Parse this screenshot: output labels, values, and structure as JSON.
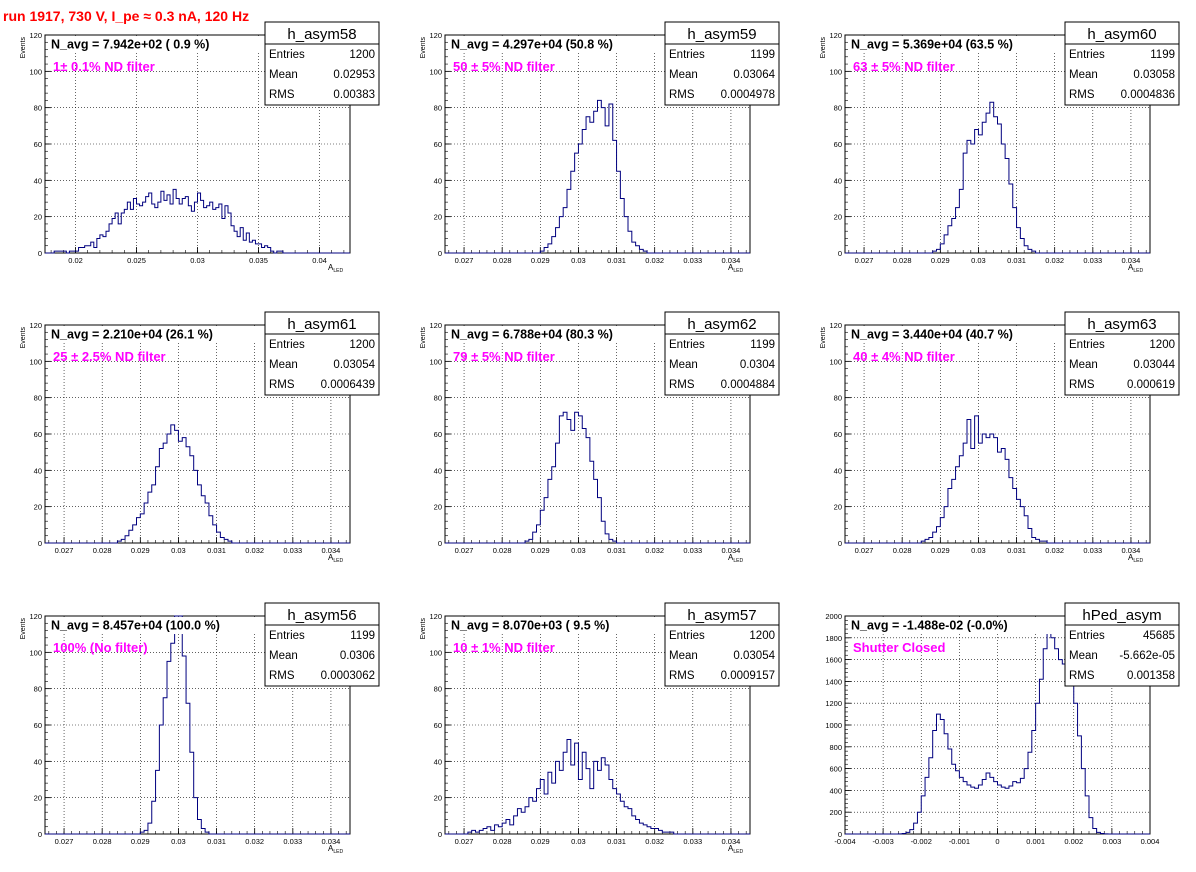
{
  "header": {
    "run_title": "run 1917,   730 V, I_pe ≈ 0.3 nA, 120 Hz"
  },
  "colors": {
    "histogram": "#00007f",
    "annotation": "#ff00ff",
    "title": "#ff0000",
    "grid": "#000000"
  },
  "chart_data": [
    {
      "type": "bar",
      "hist_name": "h_asym58",
      "navg": "N_avg = 7.942e+02 ( 0.9 %)",
      "filter": "1± 0.1% ND filter",
      "stats": [
        [
          "Entries",
          "1200"
        ],
        [
          "Mean",
          "0.02953"
        ],
        [
          "RMS",
          "0.00383"
        ]
      ],
      "xlim": [
        0.0175,
        0.0425
      ],
      "ylim": [
        0,
        120
      ],
      "xticks": [
        0.02,
        0.025,
        0.03,
        0.035,
        0.04
      ],
      "xtick_labels": [
        "0.02",
        "0.025",
        "0.03",
        "0.035",
        "0.04"
      ],
      "yticks": [
        0,
        20,
        40,
        60,
        80,
        100,
        120
      ],
      "ytick_labels": [
        "0",
        "20",
        "40",
        "60",
        "80",
        "100",
        "120"
      ],
      "ylabel": "Events",
      "xlabel": "A",
      "xlabel_sub": "LED",
      "bin_lo": 0.0175,
      "bin_width": 0.00025,
      "counts": [
        0,
        0,
        0,
        1,
        1,
        1,
        1,
        0,
        1,
        1,
        1,
        3,
        3,
        4,
        4,
        6,
        3,
        8,
        10,
        9,
        12,
        16,
        19,
        22,
        16,
        22,
        24,
        28,
        24,
        30,
        27,
        26,
        28,
        31,
        33,
        27,
        25,
        28,
        34,
        29,
        32,
        27,
        35,
        30,
        27,
        30,
        31,
        26,
        23,
        28,
        33,
        29,
        25,
        26,
        28,
        24,
        25,
        27,
        19,
        26,
        22,
        15,
        12,
        9,
        14,
        7,
        11,
        6,
        7,
        5,
        5,
        3,
        4,
        3,
        1,
        0,
        1,
        1,
        0,
        0,
        0,
        0,
        0,
        0,
        0,
        0,
        0,
        0,
        0,
        0,
        0,
        0,
        0,
        0,
        0,
        0,
        0,
        0,
        0,
        0
      ]
    },
    {
      "type": "bar",
      "hist_name": "h_asym59",
      "navg": "N_avg = 4.297e+04 (50.8 %)",
      "filter": "50 ± 5% ND filter",
      "stats": [
        [
          "Entries",
          "1199"
        ],
        [
          "Mean",
          "0.03064"
        ],
        [
          "RMS",
          "0.0004978"
        ]
      ],
      "xlim": [
        0.0265,
        0.0345
      ],
      "ylim": [
        0,
        120
      ],
      "xticks": [
        0.027,
        0.028,
        0.029,
        0.03,
        0.031,
        0.032,
        0.033,
        0.034
      ],
      "xtick_labels": [
        "0.027",
        "0.028",
        "0.029",
        "0.03",
        "0.031",
        "0.032",
        "0.033",
        "0.034"
      ],
      "yticks": [
        0,
        20,
        40,
        60,
        80,
        100,
        120
      ],
      "ytick_labels": [
        "0",
        "20",
        "40",
        "60",
        "80",
        "100",
        "120"
      ],
      "ylabel": "Events",
      "xlabel": "A",
      "xlabel_sub": "LED",
      "bin_lo": 0.0265,
      "bin_width": 0.0001,
      "counts": [
        0,
        0,
        0,
        0,
        0,
        0,
        0,
        0,
        0,
        0,
        0,
        0,
        0,
        0,
        0,
        0,
        0,
        0,
        0,
        0,
        0,
        0,
        0,
        0,
        0,
        1,
        3,
        5,
        9,
        14,
        20,
        25,
        35,
        45,
        55,
        60,
        68,
        75,
        72,
        78,
        84,
        80,
        70,
        82,
        62,
        45,
        30,
        20,
        12,
        6,
        4,
        2,
        1,
        0,
        0,
        0,
        0,
        0,
        0,
        0,
        0,
        0,
        0,
        0,
        0,
        0,
        0,
        0,
        0,
        0,
        0,
        0,
        0,
        0,
        0,
        0,
        0,
        0,
        0,
        0
      ]
    },
    {
      "type": "bar",
      "hist_name": "h_asym60",
      "navg": "N_avg = 5.369e+04 (63.5 %)",
      "filter": "63 ± 5% ND filter",
      "stats": [
        [
          "Entries",
          "1199"
        ],
        [
          "Mean",
          "0.03058"
        ],
        [
          "RMS",
          "0.0004836"
        ]
      ],
      "xlim": [
        0.0265,
        0.0345
      ],
      "ylim": [
        0,
        120
      ],
      "xticks": [
        0.027,
        0.028,
        0.029,
        0.03,
        0.031,
        0.032,
        0.033,
        0.034
      ],
      "xtick_labels": [
        "0.027",
        "0.028",
        "0.029",
        "0.03",
        "0.031",
        "0.032",
        "0.033",
        "0.034"
      ],
      "yticks": [
        0,
        20,
        40,
        60,
        80,
        100,
        120
      ],
      "ytick_labels": [
        "0",
        "20",
        "40",
        "60",
        "80",
        "100",
        "120"
      ],
      "ylabel": "Events",
      "xlabel": "A",
      "xlabel_sub": "LED",
      "bin_lo": 0.0265,
      "bin_width": 0.0001,
      "counts": [
        0,
        0,
        0,
        0,
        0,
        0,
        0,
        0,
        0,
        0,
        0,
        0,
        0,
        0,
        0,
        0,
        0,
        0,
        0,
        0,
        0,
        0,
        0,
        1,
        2,
        5,
        10,
        15,
        19,
        25,
        35,
        55,
        62,
        60,
        68,
        65,
        72,
        77,
        83,
        75,
        71,
        60,
        52,
        38,
        25,
        14,
        8,
        4,
        2,
        1,
        0,
        0,
        0,
        0,
        0,
        0,
        0,
        0,
        0,
        0,
        0,
        0,
        0,
        0,
        0,
        0,
        0,
        0,
        0,
        0,
        0,
        0,
        0,
        0,
        0,
        0,
        0,
        0,
        0,
        0
      ]
    },
    {
      "type": "bar",
      "hist_name": "h_asym61",
      "navg": "N_avg = 2.210e+04 (26.1 %)",
      "filter": "25 ± 2.5% ND filter",
      "stats": [
        [
          "Entries",
          "1200"
        ],
        [
          "Mean",
          "0.03054"
        ],
        [
          "RMS",
          "0.0006439"
        ]
      ],
      "xlim": [
        0.0265,
        0.0345
      ],
      "ylim": [
        0,
        120
      ],
      "xticks": [
        0.027,
        0.028,
        0.029,
        0.03,
        0.031,
        0.032,
        0.033,
        0.034
      ],
      "xtick_labels": [
        "0.027",
        "0.028",
        "0.029",
        "0.03",
        "0.031",
        "0.032",
        "0.033",
        "0.034"
      ],
      "yticks": [
        0,
        20,
        40,
        60,
        80,
        100,
        120
      ],
      "ytick_labels": [
        "0",
        "20",
        "40",
        "60",
        "80",
        "100",
        "120"
      ],
      "ylabel": "Events",
      "xlabel": "A",
      "xlabel_sub": "LED",
      "bin_lo": 0.0265,
      "bin_width": 0.0001,
      "counts": [
        0,
        0,
        0,
        0,
        0,
        0,
        0,
        0,
        0,
        0,
        0,
        0,
        0,
        0,
        0,
        0,
        0,
        0,
        0,
        1,
        2,
        4,
        7,
        10,
        14,
        16,
        22,
        28,
        32,
        42,
        52,
        55,
        60,
        65,
        62,
        56,
        58,
        53,
        48,
        40,
        32,
        26,
        22,
        15,
        10,
        6,
        3,
        2,
        1,
        0,
        0,
        0,
        0,
        0,
        0,
        0,
        0,
        0,
        0,
        0,
        0,
        0,
        0,
        0,
        0,
        0,
        0,
        0,
        0,
        0,
        0,
        0,
        0,
        0,
        0,
        0,
        0,
        0,
        0,
        0
      ]
    },
    {
      "type": "bar",
      "hist_name": "h_asym62",
      "navg": "N_avg = 6.788e+04 (80.3 %)",
      "filter": "79 ± 5% ND filter",
      "stats": [
        [
          "Entries",
          "1199"
        ],
        [
          "Mean",
          "0.0304"
        ],
        [
          "RMS",
          "0.0004884"
        ]
      ],
      "xlim": [
        0.0265,
        0.0345
      ],
      "ylim": [
        0,
        120
      ],
      "xticks": [
        0.027,
        0.028,
        0.029,
        0.03,
        0.031,
        0.032,
        0.033,
        0.034
      ],
      "xtick_labels": [
        "0.027",
        "0.028",
        "0.029",
        "0.03",
        "0.031",
        "0.032",
        "0.033",
        "0.034"
      ],
      "yticks": [
        0,
        20,
        40,
        60,
        80,
        100,
        120
      ],
      "ytick_labels": [
        "0",
        "20",
        "40",
        "60",
        "80",
        "100",
        "120"
      ],
      "ylabel": "Events",
      "xlabel": "A",
      "xlabel_sub": "LED",
      "bin_lo": 0.0265,
      "bin_width": 0.0001,
      "counts": [
        0,
        0,
        0,
        0,
        0,
        0,
        0,
        0,
        0,
        0,
        0,
        0,
        0,
        0,
        0,
        0,
        0,
        0,
        0,
        0,
        0,
        1,
        2,
        6,
        10,
        18,
        25,
        35,
        42,
        55,
        70,
        72,
        68,
        62,
        72,
        70,
        63,
        58,
        45,
        35,
        25,
        12,
        5,
        2,
        1,
        0,
        0,
        0,
        0,
        0,
        0,
        0,
        0,
        0,
        0,
        0,
        0,
        0,
        0,
        0,
        0,
        0,
        0,
        0,
        0,
        0,
        0,
        0,
        0,
        0,
        0,
        0,
        0,
        0,
        0,
        0,
        0,
        0,
        0,
        0
      ]
    },
    {
      "type": "bar",
      "hist_name": "h_asym63",
      "navg": "N_avg = 3.440e+04 (40.7 %)",
      "filter": "40 ± 4% ND filter",
      "stats": [
        [
          "Entries",
          "1200"
        ],
        [
          "Mean",
          "0.03044"
        ],
        [
          "RMS",
          "0.000619"
        ]
      ],
      "xlim": [
        0.0265,
        0.0345
      ],
      "ylim": [
        0,
        120
      ],
      "xticks": [
        0.027,
        0.028,
        0.029,
        0.03,
        0.031,
        0.032,
        0.033,
        0.034
      ],
      "xtick_labels": [
        "0.027",
        "0.028",
        "0.029",
        "0.03",
        "0.031",
        "0.032",
        "0.033",
        "0.034"
      ],
      "yticks": [
        0,
        20,
        40,
        60,
        80,
        100,
        120
      ],
      "ytick_labels": [
        "0",
        "20",
        "40",
        "60",
        "80",
        "100",
        "120"
      ],
      "ylabel": "Events",
      "xlabel": "A",
      "xlabel_sub": "LED",
      "bin_lo": 0.0265,
      "bin_width": 0.0001,
      "counts": [
        0,
        0,
        0,
        0,
        0,
        0,
        0,
        0,
        0,
        0,
        0,
        0,
        0,
        0,
        0,
        0,
        0,
        0,
        0,
        0,
        1,
        2,
        3,
        6,
        9,
        14,
        20,
        30,
        35,
        42,
        48,
        55,
        68,
        52,
        70,
        55,
        60,
        58,
        60,
        58,
        50,
        52,
        46,
        36,
        30,
        24,
        20,
        15,
        8,
        3,
        2,
        1,
        1,
        0,
        0,
        0,
        0,
        0,
        0,
        0,
        0,
        0,
        0,
        0,
        0,
        0,
        0,
        0,
        0,
        0,
        0,
        0,
        0,
        0,
        0,
        0,
        0,
        0,
        0,
        0
      ]
    },
    {
      "type": "bar",
      "hist_name": "h_asym56",
      "navg": "N_avg = 8.457e+04 (100.0 %)",
      "filter": "100% (No filter)",
      "stats": [
        [
          "Entries",
          "1199"
        ],
        [
          "Mean",
          "0.0306"
        ],
        [
          "RMS",
          "0.0003062"
        ]
      ],
      "xlim": [
        0.0265,
        0.0345
      ],
      "ylim": [
        0,
        120
      ],
      "xticks": [
        0.027,
        0.028,
        0.029,
        0.03,
        0.031,
        0.032,
        0.033,
        0.034
      ],
      "xtick_labels": [
        "0.027",
        "0.028",
        "0.029",
        "0.03",
        "0.031",
        "0.032",
        "0.033",
        "0.034"
      ],
      "yticks": [
        0,
        20,
        40,
        60,
        80,
        100,
        120
      ],
      "ytick_labels": [
        "0",
        "20",
        "40",
        "60",
        "80",
        "100",
        "120"
      ],
      "ylabel": "Events",
      "xlabel": "A",
      "xlabel_sub": "LED",
      "bin_lo": 0.0265,
      "bin_width": 0.0001,
      "counts": [
        0,
        0,
        0,
        0,
        0,
        0,
        0,
        0,
        0,
        0,
        0,
        0,
        0,
        0,
        0,
        0,
        0,
        0,
        0,
        0,
        0,
        0,
        0,
        0,
        0,
        1,
        2,
        6,
        18,
        35,
        60,
        75,
        95,
        105,
        125,
        125,
        98,
        72,
        45,
        20,
        8,
        3,
        1,
        0,
        0,
        0,
        0,
        0,
        0,
        0,
        0,
        0,
        0,
        0,
        0,
        0,
        0,
        0,
        0,
        0,
        0,
        0,
        0,
        0,
        0,
        0,
        0,
        0,
        0,
        0,
        0,
        0,
        0,
        0,
        0,
        0,
        0,
        0,
        0,
        0
      ]
    },
    {
      "type": "bar",
      "hist_name": "h_asym57",
      "navg": "N_avg = 8.070e+03 ( 9.5 %)",
      "filter": "10 ± 1% ND filter",
      "stats": [
        [
          "Entries",
          "1200"
        ],
        [
          "Mean",
          "0.03054"
        ],
        [
          "RMS",
          "0.0009157"
        ]
      ],
      "xlim": [
        0.0265,
        0.0345
      ],
      "ylim": [
        0,
        120
      ],
      "xticks": [
        0.027,
        0.028,
        0.029,
        0.03,
        0.031,
        0.032,
        0.033,
        0.034
      ],
      "xtick_labels": [
        "0.027",
        "0.028",
        "0.029",
        "0.03",
        "0.031",
        "0.032",
        "0.033",
        "0.034"
      ],
      "yticks": [
        0,
        20,
        40,
        60,
        80,
        100,
        120
      ],
      "ytick_labels": [
        "0",
        "20",
        "40",
        "60",
        "80",
        "100",
        "120"
      ],
      "ylabel": "Events",
      "xlabel": "A",
      "xlabel_sub": "LED",
      "bin_lo": 0.0265,
      "bin_width": 0.0001,
      "counts": [
        0,
        0,
        0,
        0,
        0,
        0,
        1,
        2,
        1,
        2,
        3,
        4,
        2,
        5,
        4,
        6,
        8,
        5,
        10,
        14,
        12,
        15,
        20,
        18,
        25,
        30,
        22,
        34,
        28,
        40,
        35,
        45,
        52,
        38,
        50,
        30,
        45,
        36,
        25,
        40,
        35,
        42,
        38,
        30,
        25,
        22,
        18,
        15,
        14,
        10,
        8,
        6,
        5,
        4,
        3,
        3,
        2,
        1,
        1,
        1,
        0,
        0,
        0,
        0,
        0,
        0,
        0,
        0,
        0,
        0,
        0,
        0,
        0,
        0,
        0,
        0,
        0,
        0,
        0,
        0
      ]
    },
    {
      "type": "bar",
      "hist_name": "hPed_asym",
      "navg": "N_avg = -1.488e-02 (-0.0%)",
      "filter": "Shutter Closed",
      "stats": [
        [
          "Entries",
          "45685"
        ],
        [
          "Mean",
          "-5.662e-05"
        ],
        [
          "RMS",
          "0.001358"
        ]
      ],
      "xlim": [
        -0.004,
        0.004
      ],
      "ylim": [
        0,
        2000
      ],
      "xticks": [
        -0.004,
        -0.003,
        -0.002,
        -0.001,
        0,
        0.001,
        0.002,
        0.003,
        0.004
      ],
      "xtick_labels": [
        "-0.004",
        "-0.003",
        "-0.002",
        "-0.001",
        "0",
        "0.001",
        "0.002",
        "0.003",
        "0.004"
      ],
      "yticks": [
        0,
        200,
        400,
        600,
        800,
        1000,
        1200,
        1400,
        1600,
        1800,
        2000
      ],
      "ytick_labels": [
        "0",
        "200",
        "400",
        "600",
        "800",
        "1000",
        "1200",
        "1400",
        "1600",
        "1800",
        "2000"
      ],
      "ylabel": "",
      "xlabel": "",
      "xlabel_sub": "",
      "bin_lo": -0.004,
      "bin_width": 0.0001,
      "counts": [
        0,
        0,
        0,
        0,
        0,
        0,
        0,
        0,
        0,
        0,
        0,
        0,
        0,
        0,
        1,
        5,
        15,
        40,
        100,
        200,
        350,
        520,
        700,
        950,
        1100,
        1050,
        920,
        780,
        640,
        580,
        520,
        480,
        450,
        430,
        420,
        450,
        500,
        560,
        520,
        480,
        450,
        430,
        420,
        440,
        480,
        470,
        510,
        600,
        750,
        950,
        1200,
        1420,
        1700,
        1900,
        1800,
        1700,
        1600,
        1560,
        1500,
        1400,
        1200,
        900,
        600,
        350,
        150,
        50,
        15,
        5,
        1,
        0,
        0,
        0,
        0,
        0,
        0,
        0,
        0,
        0,
        0,
        0
      ]
    }
  ]
}
